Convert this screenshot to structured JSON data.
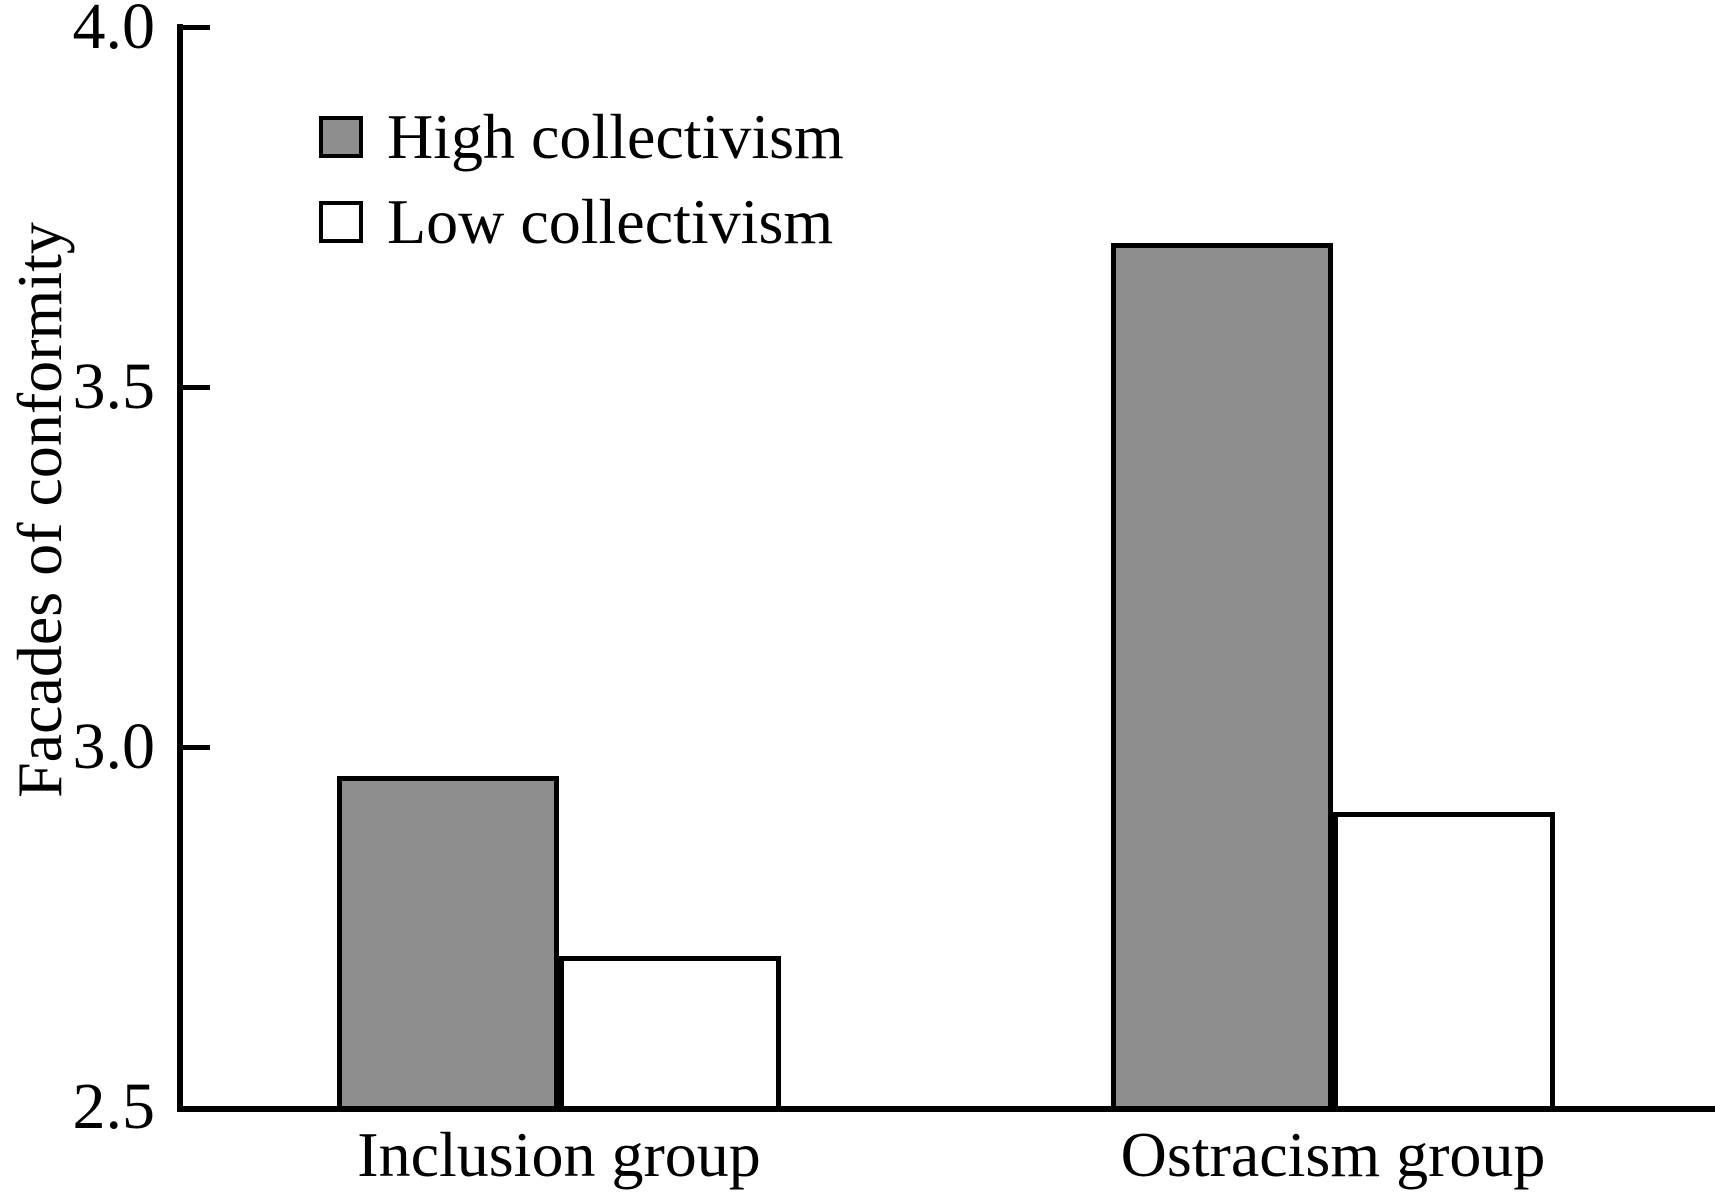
{
  "chart_data": {
    "type": "bar",
    "title": "",
    "xlabel": "",
    "ylabel": "Facades of conformity",
    "categories": [
      "Inclusion group",
      "Ostracism group"
    ],
    "series": [
      {
        "name": "High collectivism",
        "fill": "#8e8e8e",
        "values": [
          2.96,
          3.7
        ]
      },
      {
        "name": "Low collectivism",
        "fill": "#ffffff",
        "values": [
          2.71,
          2.91
        ]
      }
    ],
    "ylim": [
      2.5,
      4.0
    ],
    "yticks": [
      4.0,
      3.5,
      3.0,
      2.5
    ],
    "ytick_labels": [
      "4.0",
      "3.5",
      "3.0",
      "2.5"
    ],
    "grid": false,
    "legend_position": "top-left-inside",
    "bar_border_color": "#000000",
    "axis_color": "#000000",
    "background_color": "#ffffff"
  }
}
